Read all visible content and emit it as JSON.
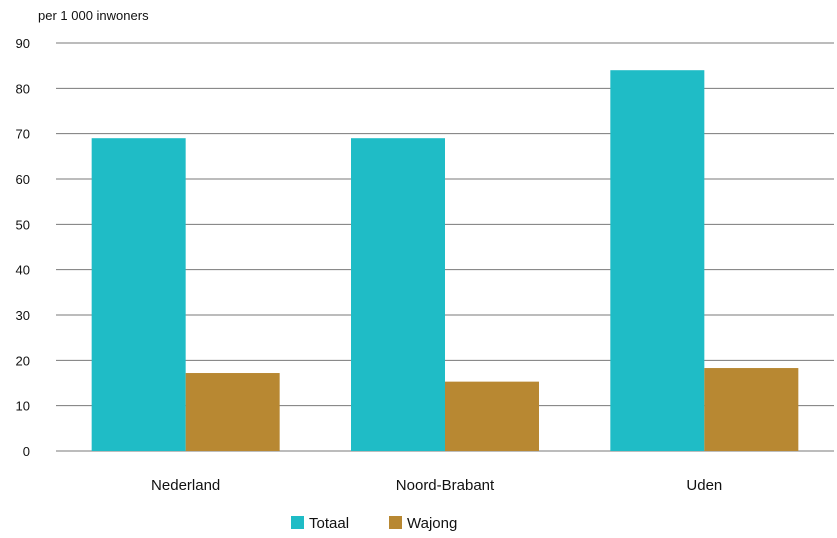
{
  "chart_data": {
    "type": "bar",
    "ylabel": "per 1 000 inwoners",
    "categories": [
      "Nederland",
      "Noord-Brabant",
      "Uden"
    ],
    "series": [
      {
        "name": "Totaal",
        "values": [
          69,
          69,
          84
        ],
        "color": "#1fbcc6"
      },
      {
        "name": "Wajong",
        "values": [
          17.2,
          15.3,
          18.3
        ],
        "color": "#b88832"
      }
    ],
    "ylim": [
      0,
      90
    ],
    "yticks": [
      0,
      10,
      20,
      30,
      40,
      50,
      60,
      70,
      80,
      90
    ],
    "grid": true,
    "legend": "bottom-center"
  }
}
